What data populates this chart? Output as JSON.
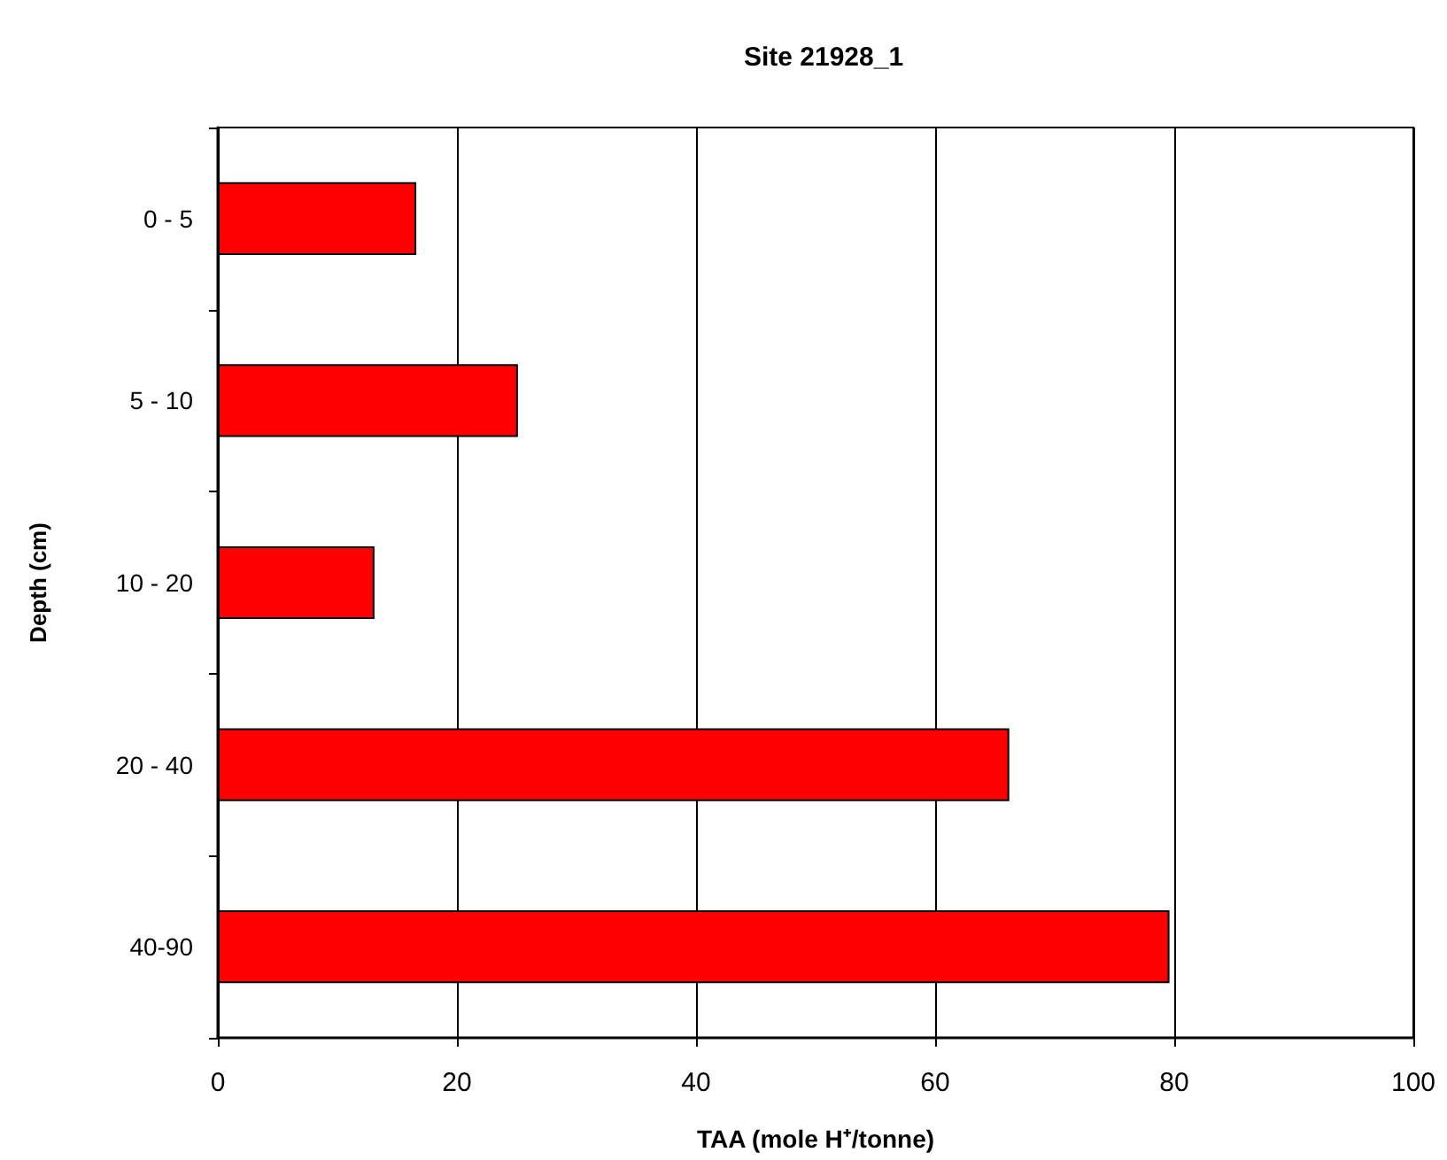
{
  "chart_data": {
    "type": "bar",
    "orientation": "horizontal",
    "title": "Site 21928_1",
    "xlabel": "TAA (mole H⁺/tonne)",
    "ylabel": "Depth (cm)",
    "categories": [
      "0 - 5",
      "5 - 10",
      "10 - 20",
      "20 - 40",
      "40-90"
    ],
    "values": [
      16.6,
      25.1,
      13.1,
      66.2,
      79.6
    ],
    "color": "#ff0000",
    "xlim": [
      0,
      100
    ],
    "xticks": [
      0,
      20,
      40,
      60,
      80,
      100
    ],
    "grid": "x"
  }
}
